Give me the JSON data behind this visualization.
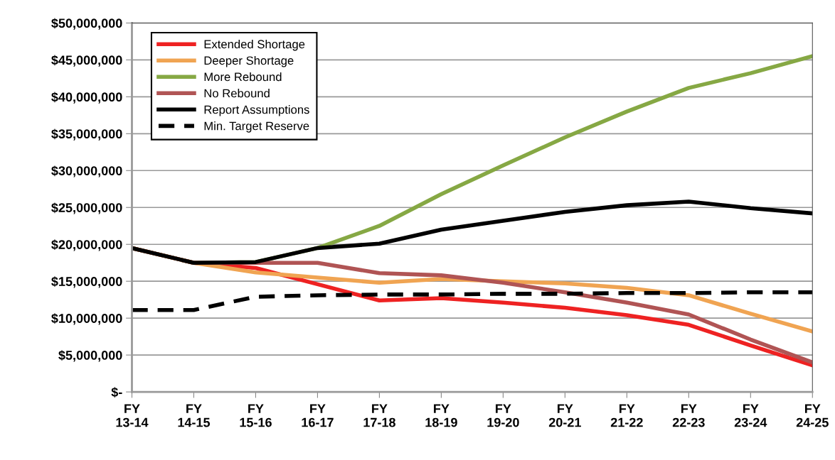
{
  "chart_data": {
    "type": "line",
    "categories": [
      "FY\n13-14",
      "FY\n14-15",
      "FY\n15-16",
      "FY\n16-17",
      "FY\n17-18",
      "FY\n18-19",
      "FY\n19-20",
      "FY\n20-21",
      "FY\n21-22",
      "FY\n22-23",
      "FY\n23-24",
      "FY\n24-25"
    ],
    "series": [
      {
        "name": "Extended Shortage",
        "color": "#ee2222",
        "values": [
          19500000,
          17500000,
          16800000,
          14600000,
          12400000,
          12700000,
          12100000,
          11400000,
          10400000,
          9100000,
          6300000,
          3600000
        ]
      },
      {
        "name": "Deeper Shortage",
        "color": "#f0a452",
        "values": [
          19500000,
          17500000,
          16200000,
          15500000,
          14800000,
          15300000,
          15000000,
          14700000,
          14100000,
          13100000,
          10600000,
          8200000
        ]
      },
      {
        "name": "More Rebound",
        "color": "#86a844",
        "values": [
          19500000,
          17500000,
          17600000,
          19500000,
          22500000,
          26800000,
          30700000,
          34500000,
          38000000,
          41200000,
          43200000,
          45500000
        ]
      },
      {
        "name": "No Rebound",
        "color": "#b05454",
        "values": [
          19500000,
          17500000,
          17500000,
          17500000,
          16100000,
          15800000,
          14800000,
          13500000,
          12100000,
          10500000,
          7100000,
          4000000
        ]
      },
      {
        "name": "Report Assumptions",
        "color": "#000000",
        "values": [
          19500000,
          17500000,
          17600000,
          19500000,
          20100000,
          22000000,
          23200000,
          24400000,
          25300000,
          25800000,
          24900000,
          24200000
        ]
      },
      {
        "name": "Min. Target Reserve",
        "color": "#000000",
        "line_style": "dashed",
        "values": [
          11100000,
          11100000,
          12900000,
          13100000,
          13200000,
          13200000,
          13300000,
          13300000,
          13400000,
          13400000,
          13500000,
          13500000
        ]
      }
    ],
    "ylim": [
      0,
      50000000
    ],
    "yticks": [
      {
        "value": 0,
        "label": "$-"
      },
      {
        "value": 5000000,
        "label": "$5,000,000"
      },
      {
        "value": 10000000,
        "label": "$10,000,000"
      },
      {
        "value": 15000000,
        "label": "$15,000,000"
      },
      {
        "value": 20000000,
        "label": "$20,000,000"
      },
      {
        "value": 25000000,
        "label": "$25,000,000"
      },
      {
        "value": 30000000,
        "label": "$30,000,000"
      },
      {
        "value": 35000000,
        "label": "$35,000,000"
      },
      {
        "value": 40000000,
        "label": "$40,000,000"
      },
      {
        "value": 45000000,
        "label": "$45,000,000"
      },
      {
        "value": 50000000,
        "label": "$50,000,000"
      }
    ],
    "grid": "y",
    "legend": "top left",
    "line_style": "solid",
    "marker": "none"
  }
}
